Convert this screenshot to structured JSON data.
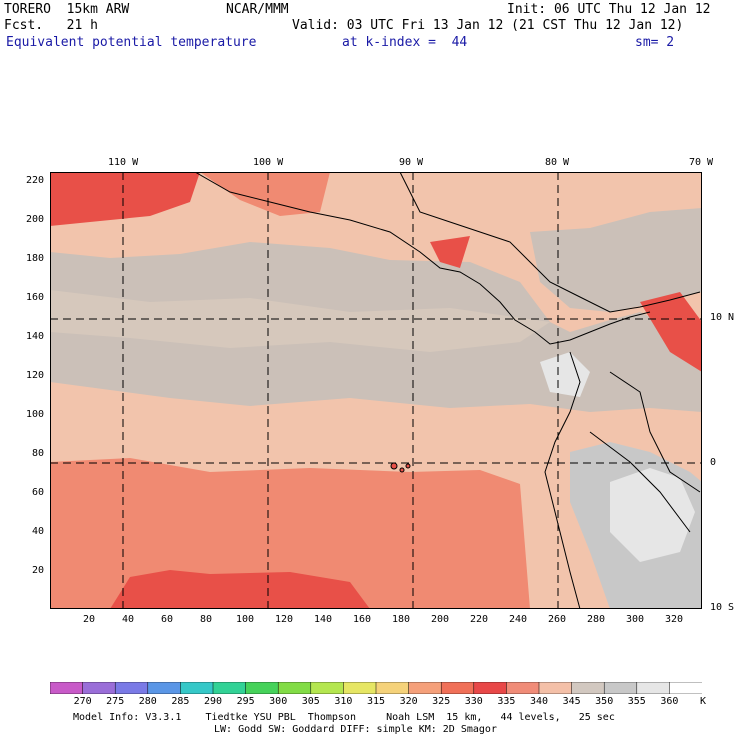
{
  "header": {
    "model": "TORERO  15km ARW",
    "fcst": "Fcst.   21 h",
    "org": "NCAR/MMM",
    "init": "Init: 06 UTC Thu 12 Jan 12",
    "valid": "Valid: 03 UTC Fri 13 Jan 12 (21 CST Thu 12 Jan 12)",
    "field": "Equivalent potential temperature",
    "level": "at k-index =  44",
    "smooth": "sm= 2"
  },
  "top_ticks": [
    "110 W",
    "100 W",
    "90 W",
    "80 W",
    "70 W"
  ],
  "right_ticks": [
    "10 N",
    "0",
    "10 S"
  ],
  "y_axis": [
    "220",
    "200",
    "180",
    "160",
    "140",
    "120",
    "100",
    "80",
    "60",
    "40",
    "20"
  ],
  "x_axis": [
    "20",
    "40",
    "60",
    "80",
    "100",
    "120",
    "140",
    "160",
    "180",
    "200",
    "220",
    "240",
    "260",
    "280",
    "300",
    "320"
  ],
  "colorbar": {
    "labels": [
      "270",
      "275",
      "280",
      "285",
      "290",
      "295",
      "300",
      "305",
      "310",
      "315",
      "320",
      "325",
      "330",
      "335",
      "340",
      "345",
      "350",
      "355",
      "360"
    ],
    "unit": "K",
    "colors": [
      "#c85ac8",
      "#9a6ed8",
      "#7a7ae6",
      "#5a96e6",
      "#36c8c8",
      "#32d296",
      "#46d25a",
      "#82dc46",
      "#b4e650",
      "#e6e664",
      "#f5d27a",
      "#f5a07a",
      "#f07058",
      "#e84848",
      "#f08c78",
      "#f4c0a8",
      "#d2c8c0",
      "#c8c8c8",
      "#e6e6e6",
      "#ffffff"
    ]
  },
  "footer": {
    "line1": "Model Info: V3.3.1    Tiedtke YSU PBL  Thompson     Noah LSM  15 km,   44 levels,   25 sec",
    "line2": "LW: Godd SW: Goddard DIFF: simple KM: 2D Smagor"
  }
}
